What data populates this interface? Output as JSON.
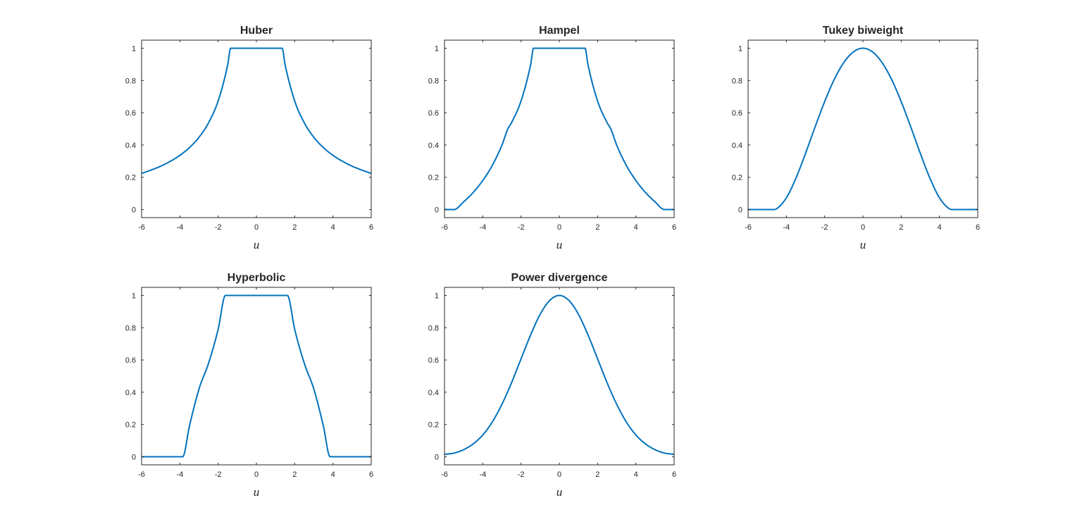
{
  "chart_data": [
    {
      "type": "line",
      "title": "Huber",
      "xlabel": "u",
      "ylabel": "",
      "xlim": [
        -6,
        6
      ],
      "ylim": [
        -0.05,
        1.05
      ],
      "xticks": [
        -6,
        -4,
        -2,
        0,
        2,
        4,
        6
      ],
      "yticks": [
        0,
        0.2,
        0.4,
        0.6,
        0.8,
        1
      ],
      "grid": false,
      "color": "#0072BD",
      "x": [
        0,
        0.5,
        1,
        1.345,
        1.5,
        2,
        2.5,
        3,
        3.5,
        4,
        4.5,
        5,
        5.5,
        6
      ],
      "y": [
        1,
        1,
        1,
        1,
        0.897,
        0.673,
        0.538,
        0.448,
        0.384,
        0.336,
        0.299,
        0.269,
        0.245,
        0.224
      ]
    },
    {
      "type": "line",
      "title": "Hampel",
      "xlabel": "u",
      "ylabel": "",
      "xlim": [
        -6,
        6
      ],
      "ylim": [
        -0.05,
        1.05
      ],
      "xticks": [
        -6,
        -4,
        -2,
        0,
        2,
        4,
        6
      ],
      "yticks": [
        0,
        0.2,
        0.4,
        0.6,
        0.8,
        1
      ],
      "grid": false,
      "color": "#0072BD",
      "x": [
        0,
        0.5,
        1,
        1.345,
        1.5,
        2,
        2.5,
        2.69,
        3,
        3.5,
        4,
        4.5,
        5,
        5.5,
        6
      ],
      "y": [
        1,
        1,
        1,
        1,
        0.897,
        0.673,
        0.538,
        0.5,
        0.399,
        0.274,
        0.18,
        0.106,
        0.048,
        0,
        0
      ]
    },
    {
      "type": "line",
      "title": "Tukey biweight",
      "xlabel": "u",
      "ylabel": "",
      "xlim": [
        -6,
        6
      ],
      "ylim": [
        -0.05,
        1.05
      ],
      "xticks": [
        -6,
        -4,
        -2,
        0,
        2,
        4,
        6
      ],
      "yticks": [
        0,
        0.2,
        0.4,
        0.6,
        0.8,
        1
      ],
      "grid": false,
      "color": "#0072BD",
      "x": [
        0,
        0.5,
        1,
        1.5,
        2,
        2.5,
        3,
        3.5,
        4,
        4.5,
        4.685,
        5,
        5.5,
        6
      ],
      "y": [
        1,
        0.977,
        0.911,
        0.806,
        0.669,
        0.512,
        0.348,
        0.195,
        0.073,
        0.006,
        0,
        0,
        0,
        0
      ]
    },
    {
      "type": "line",
      "title": "Hyperbolic",
      "xlabel": "u",
      "ylabel": "",
      "xlim": [
        -6,
        6
      ],
      "ylim": [
        -0.05,
        1.05
      ],
      "xticks": [
        -6,
        -4,
        -2,
        0,
        2,
        4,
        6
      ],
      "yticks": [
        0,
        0.2,
        0.4,
        0.6,
        0.8,
        1
      ],
      "grid": false,
      "color": "#0072BD",
      "x": [
        0,
        0.5,
        1,
        1.62,
        2,
        2.5,
        3,
        3.5,
        3.85,
        4.5,
        5,
        5.5,
        6
      ],
      "y": [
        1,
        1,
        1,
        1,
        0.79,
        0.58,
        0.42,
        0.19,
        0,
        0,
        0,
        0,
        0
      ]
    },
    {
      "type": "line",
      "title": "Power divergence",
      "xlabel": "u",
      "ylabel": "",
      "xlim": [
        -6,
        6
      ],
      "ylim": [
        -0.05,
        1.05
      ],
      "xticks": [
        -6,
        -4,
        -2,
        0,
        2,
        4,
        6
      ],
      "yticks": [
        0,
        0.2,
        0.4,
        0.6,
        0.8,
        1
      ],
      "grid": false,
      "color": "#0072BD",
      "x": [
        0,
        0.5,
        1,
        1.5,
        2,
        2.5,
        3,
        3.5,
        4,
        4.5,
        5,
        5.5,
        6
      ],
      "y": [
        1,
        0.969,
        0.883,
        0.755,
        0.607,
        0.458,
        0.325,
        0.216,
        0.135,
        0.08,
        0.044,
        0.023,
        0.015
      ]
    }
  ]
}
